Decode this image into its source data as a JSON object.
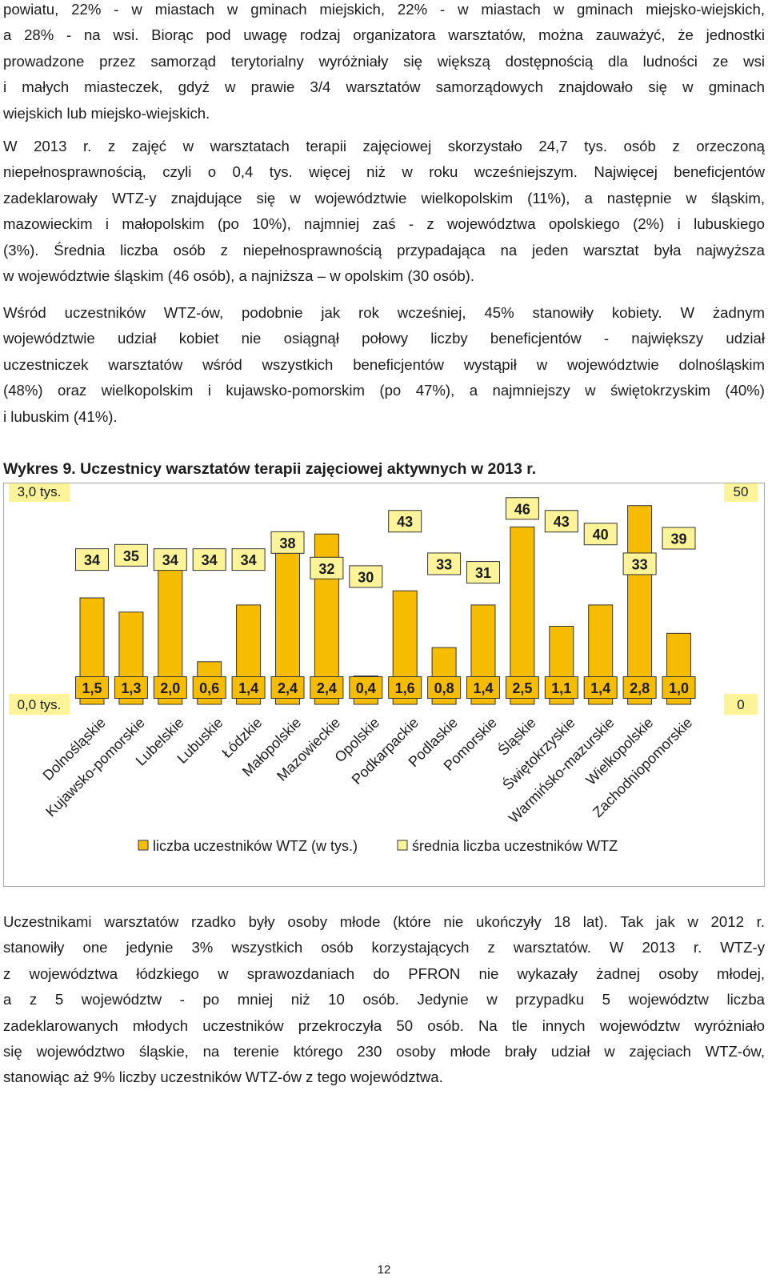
{
  "text": {
    "p1": [
      "powiatu, 22% - w miastach w gminach miejskich, 22% - w miastach w gminach miejsko-wiejskich,",
      "a 28% - na wsi. Biorąc pod uwagę rodzaj organizatora warsztatów, można zauważyć, że jednostki",
      "prowadzone przez samorząd terytorialny wyróżniały się większą dostępnością dla ludności ze wsi",
      "i małych miasteczek, gdyż w prawie 3/4 warsztatów samorządowych znajdowało się w gminach",
      "wiejskich lub miejsko-wiejskich."
    ],
    "p2": [
      "W 2013 r. z zajęć w warsztatach terapii zajęciowej skorzystało 24,7 tys. osób z orzeczoną",
      "niepełnosprawnością, czyli o 0,4 tys. więcej niż w roku wcześniejszym. Najwięcej beneficjentów",
      "zadeklarowały WTZ-y znajdujące się w województwie wielkopolskim (11%), a następnie w śląskim,",
      "mazowieckim i małopolskim (po 10%), najmniej zaś - z województwa opolskiego (2%) i lubuskiego",
      "(3%). Średnia liczba osób z niepełnosprawnością przypadająca na jeden warsztat była najwyższa",
      "w województwie śląskim (46 osób), a najniższa – w opolskim (30 osób)."
    ],
    "p3": [
      "Wśród uczestników WTZ-ów, podobnie jak rok wcześniej, 45% stanowiły kobiety. W żadnym",
      "województwie udział kobiet nie osiągnął połowy liczby beneficjentów - największy udział",
      "uczestniczek warsztatów wśród wszystkich beneficjentów wystąpił w województwie dolnośląskim",
      "(48%) oraz wielkopolskim i kujawsko-pomorskim (po 47%), a najmniejszy w świętokrzyskim (40%)",
      "i lubuskim (41%)."
    ],
    "caption": "Wykres 9. Uczestnicy warsztatów terapii zajęciowej aktywnych w 2013 r.",
    "p4": [
      "Uczestnikami warsztatów rzadko były osoby młode (które nie ukończyły 18 lat). Tak jak w 2012 r.",
      "stanowiły one jedynie 3% wszystkich osób korzystających z warsztatów. W 2013 r. WTZ-y",
      "z województwa łódzkiego w sprawozdaniach do PFRON nie wykazały żadnej osoby młodej,",
      "a z 5 województw - po mniej niż 10 osób. Jedynie w przypadku 5 województw liczba",
      "zadeklarowanych młodych uczestników przekroczyła 50 osób. Na tle innych województw wyróżniało",
      "się województwo śląskie, na terenie którego 230 osoby młode brały udział w zajęciach WTZ-ów,",
      "stanowiąc aż 9% liczby uczestników WTZ-ów z tego województwa."
    ],
    "page_number": "12"
  },
  "chart_data": {
    "type": "bar",
    "categories": [
      "Dolnośląskie",
      "Kujawsko-pomorskie",
      "Lubelskie",
      "Lubuskie",
      "Łódzkie",
      "Małopolskie",
      "Mazowieckie",
      "Opolskie",
      "Podkarpackie",
      "Podlaskie",
      "Pomorskie",
      "Śląskie",
      "Świętokrzyskie",
      "Warmińsko-mazurskie",
      "Wielkopolskie",
      "Zachodniopomorskie"
    ],
    "series": [
      {
        "name": "liczba uczestników WTZ (w tys.)",
        "axis": "left",
        "values": [
          1.5,
          1.3,
          2.0,
          0.6,
          1.4,
          2.4,
          2.4,
          0.4,
          1.6,
          0.8,
          1.4,
          2.5,
          1.1,
          1.4,
          2.8,
          1.0
        ],
        "labels": [
          "1,5",
          "1,3",
          "2,0",
          "0,6",
          "1,4",
          "2,4",
          "2,4",
          "0,4",
          "1,6",
          "0,8",
          "1,4",
          "2,5",
          "1,1",
          "1,4",
          "2,8",
          "1,0"
        ],
        "color": "#f5bc00"
      },
      {
        "name": "średnia liczba uczestników WTZ",
        "axis": "right",
        "values": [
          34,
          35,
          34,
          34,
          34,
          38,
          32,
          30,
          43,
          33,
          31,
          46,
          43,
          40,
          33,
          39
        ],
        "color": "#fdf49a"
      }
    ],
    "left_axis": {
      "min": 0,
      "max": 3.0,
      "min_label": "0,0 tys.",
      "max_label": "3,0 tys."
    },
    "right_axis": {
      "min": 0,
      "max": 50,
      "min_label": "0",
      "max_label": "50"
    },
    "legend_position": "bottom",
    "grid": false
  }
}
